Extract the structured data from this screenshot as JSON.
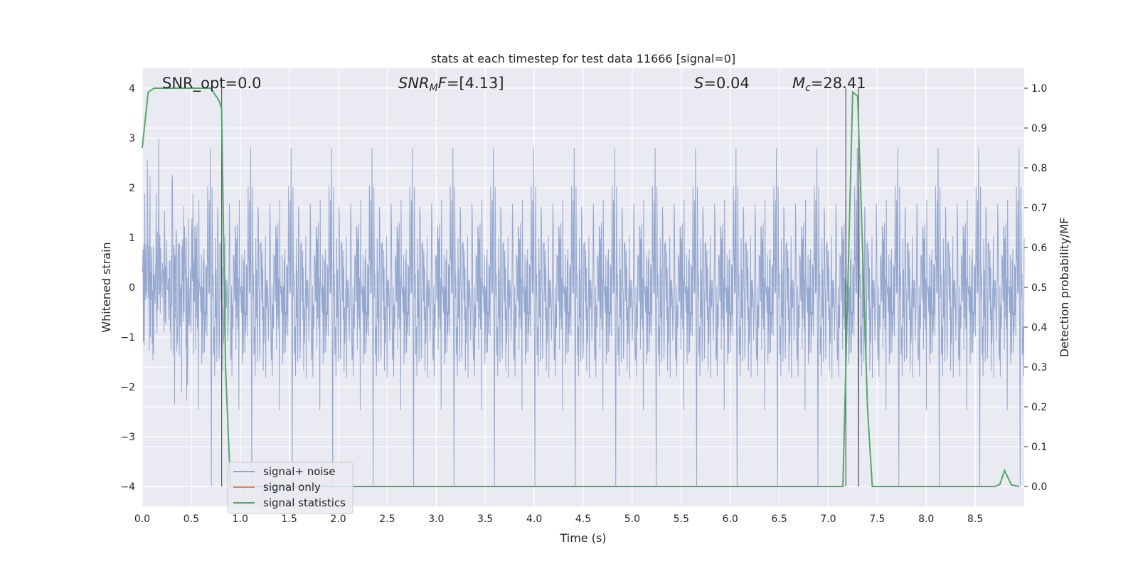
{
  "chart_data": {
    "type": "line",
    "title": "stats at each timestep for test data 11666 [signal=0]",
    "xlabel": "Time (s)",
    "ylabel_left": "Whitened strain",
    "ylabel_right": "Detection probability/MF",
    "xlim": [
      0.0,
      9.0
    ],
    "ylim_left": [
      -4.4,
      4.4
    ],
    "ylim_right": [
      -0.05,
      1.05
    ],
    "xticks": [
      "0.0",
      "0.5",
      "1.0",
      "1.5",
      "2.0",
      "2.5",
      "3.0",
      "3.5",
      "4.0",
      "4.5",
      "5.0",
      "5.5",
      "6.0",
      "6.5",
      "7.0",
      "7.5",
      "8.0",
      "8.5"
    ],
    "yticks_left": [
      "4",
      "3",
      "2",
      "1",
      "0",
      "−1",
      "−2",
      "−3",
      "−4"
    ],
    "yticks_right": [
      "1.0",
      "0.9",
      "0.8",
      "0.7",
      "0.6",
      "0.5",
      "0.4",
      "0.3",
      "0.2",
      "0.1",
      "0.0"
    ],
    "grid": true,
    "legend_placement": "lower-left",
    "annotations": {
      "snr_opt": "SNR_opt=0.0",
      "snr_mf_base": "SNR",
      "snr_mf_sub": "M",
      "snr_mf_rest": "F=[4.13]",
      "s_name": "S",
      "s_value": "=0.04",
      "mc_base": "M",
      "mc_sub": "c",
      "mc_value": "=28.41"
    },
    "vertical_lines_x": [
      0.81,
      7.18,
      7.31
    ],
    "series": [
      {
        "name": "signal+ noise",
        "color": "#8fa3cc",
        "description_of_values": "dense whitened-strain noise, envelope roughly within -2.5..2.5 with peaks up to 4 and dips to -4",
        "envelope_upper_approx": 2.5,
        "envelope_lower_approx": -2.5
      },
      {
        "name": "signal only",
        "color": "#dd8452",
        "x": [],
        "y": []
      },
      {
        "name": "signal statistics",
        "color": "#55a868",
        "x": [
          0.0,
          0.06,
          0.12,
          0.2,
          0.3,
          0.4,
          0.5,
          0.6,
          0.7,
          0.78,
          0.81,
          0.85,
          0.9,
          1.0,
          2.0,
          3.0,
          4.0,
          5.0,
          6.0,
          7.0,
          7.1,
          7.15,
          7.2,
          7.25,
          7.3,
          7.35,
          7.4,
          7.45,
          7.5,
          8.0,
          8.5,
          8.7,
          8.75,
          8.8,
          8.87,
          8.95
        ],
        "y": [
          0.85,
          0.99,
          1.0,
          1.0,
          1.0,
          1.0,
          1.0,
          1.0,
          1.0,
          0.97,
          0.95,
          0.3,
          0.0,
          0.0,
          0.0,
          0.0,
          0.0,
          0.0,
          0.0,
          0.0,
          0.0,
          0.0,
          0.5,
          0.99,
          0.98,
          0.6,
          0.2,
          0.0,
          0.0,
          0.0,
          0.0,
          0.0,
          0.005,
          0.04,
          0.004,
          0.0
        ]
      }
    ]
  }
}
